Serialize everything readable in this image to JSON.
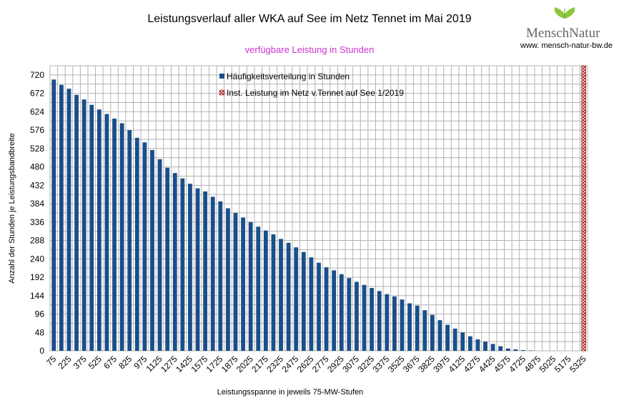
{
  "brand": {
    "name": "MenschNatur",
    "url": "www. mensch-natur-bw.de"
  },
  "chart_data": {
    "type": "bar",
    "title": "Leistungsverlauf aller WKA auf See im Netz Tennet im Mai 2019",
    "subtitle": "verfügbare Leistung in Stunden",
    "xlabel": "Leistungsspanne in jeweils 75-MW-Stufen",
    "ylabel": "Anzahl der Stunden je Leistungsbandbreite",
    "ylim": [
      0,
      744
    ],
    "yticks": [
      0,
      48,
      96,
      144,
      192,
      240,
      288,
      336,
      384,
      432,
      480,
      528,
      576,
      624,
      672,
      720
    ],
    "grid": true,
    "legend_position": "top-center",
    "x": [
      75,
      150,
      225,
      300,
      375,
      450,
      525,
      600,
      675,
      750,
      825,
      900,
      975,
      1050,
      1125,
      1200,
      1275,
      1350,
      1425,
      1500,
      1575,
      1650,
      1725,
      1800,
      1875,
      1950,
      2025,
      2100,
      2175,
      2250,
      2325,
      2400,
      2475,
      2550,
      2625,
      2700,
      2775,
      2850,
      2925,
      3000,
      3075,
      3150,
      3225,
      3300,
      3375,
      3450,
      3525,
      3600,
      3675,
      3750,
      3825,
      3900,
      3975,
      4050,
      4125,
      4200,
      4275,
      4350,
      4425,
      4500,
      4575,
      4650,
      4725,
      4800,
      4875,
      4950,
      5025,
      5100,
      5175,
      5250,
      5325
    ],
    "xtick_labels": [
      "75",
      "225",
      "375",
      "525",
      "675",
      "825",
      "975",
      "1125",
      "1275",
      "1425",
      "1575",
      "1725",
      "1875",
      "2025",
      "2175",
      "2325",
      "2475",
      "2625",
      "2775",
      "2925",
      "3075",
      "3225",
      "3375",
      "3525",
      "3675",
      "3825",
      "3975",
      "4125",
      "4275",
      "4425",
      "4575",
      "4725",
      "4875",
      "5025",
      "5175",
      "5325"
    ],
    "series": [
      {
        "name": "Häufigkeitsverteilung in Stunden",
        "color": "#1a4f8a",
        "values": [
          708,
          694,
          684,
          668,
          656,
          642,
          630,
          618,
          606,
          594,
          576,
          556,
          544,
          524,
          500,
          478,
          464,
          450,
          436,
          424,
          416,
          402,
          390,
          372,
          360,
          348,
          336,
          324,
          314,
          304,
          292,
          282,
          270,
          258,
          244,
          230,
          218,
          210,
          200,
          190,
          180,
          172,
          164,
          156,
          148,
          142,
          134,
          124,
          118,
          106,
          94,
          80,
          68,
          58,
          48,
          38,
          30,
          24,
          18,
          12,
          6,
          4,
          2,
          1,
          0,
          0,
          0,
          0,
          0,
          0,
          0
        ]
      },
      {
        "name": "Inst. Leistung im Netz v.Tennet auf See 1/2019",
        "color": "#aa2222",
        "x_value": 5325
      }
    ]
  }
}
